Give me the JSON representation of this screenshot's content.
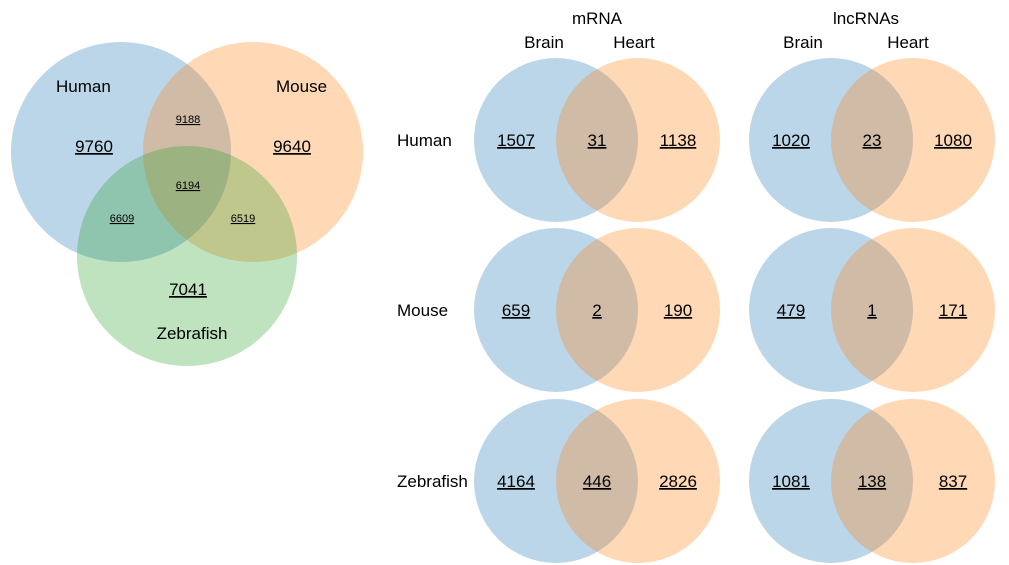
{
  "colors": {
    "blue": "#1f77b4",
    "orange": "#ff7f0e",
    "green": "#2ca02c"
  },
  "three_way": {
    "labels": {
      "a": "Human",
      "b": "Mouse",
      "c": "Zebrafish"
    },
    "values": {
      "a": "9760",
      "b": "9640",
      "c": "7041",
      "ab": "9188",
      "ac": "6609",
      "bc": "6519",
      "abc": "6194"
    }
  },
  "grid": {
    "columns": [
      {
        "title": "mRNA",
        "left": "Brain",
        "right": "Heart"
      },
      {
        "title": "lncRNAs",
        "left": "Brain",
        "right": "Heart"
      }
    ],
    "rows": [
      {
        "label": "Human",
        "mrna": [
          "1507",
          "31",
          "1138"
        ],
        "lnc": [
          "1020",
          "23",
          "1080"
        ]
      },
      {
        "label": "Mouse",
        "mrna": [
          "659",
          "2",
          "190"
        ],
        "lnc": [
          "479",
          "1",
          "171"
        ]
      },
      {
        "label": "Zebrafish",
        "mrna": [
          "4164",
          "446",
          "2826"
        ],
        "lnc": [
          "1081",
          "138",
          "837"
        ]
      }
    ]
  }
}
